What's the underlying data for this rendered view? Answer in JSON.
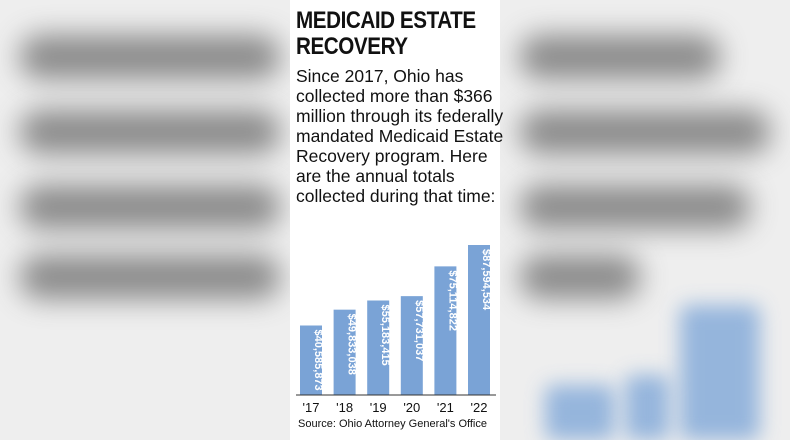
{
  "chart_data": {
    "type": "bar",
    "title": "MEDICAID ESTATE RECOVERY",
    "subtitle": "Since 2017, Ohio has collected more than $366 million through its federally mandated Medicaid Estate Recovery program. Here are the annual totals collected during that time:",
    "categories": [
      "'17",
      "'18",
      "'19",
      "'20",
      "'21",
      "'22"
    ],
    "values": [
      40585873,
      49833038,
      55183415,
      57731037,
      75114822,
      87594534
    ],
    "data_labels": [
      "$40,585,873",
      "$49,833,038",
      "$55,183,415",
      "$57,731,037",
      "$75,114,822",
      "$87,594,534"
    ],
    "source": "Source: Ohio Attorney General's Office",
    "bar_color": "#7aa3d6",
    "label_color": "#ffffff",
    "grid": false
  }
}
